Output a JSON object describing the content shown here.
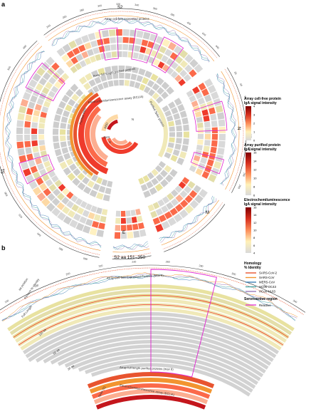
{
  "panels": {
    "a": "a",
    "b": "b"
  },
  "segments_a": [
    {
      "id": "S2",
      "label": "S2"
    },
    {
      "id": "N",
      "label": "N"
    },
    {
      "id": "M",
      "label": "M"
    },
    {
      "id": "E",
      "label": "E"
    },
    {
      "id": "S1",
      "label": "S1"
    }
  ],
  "track_labels_a": {
    "cellfree": "Array cell-free expressed proteins",
    "fulllength": "Array full-length purified proteins",
    "ecl": "Electrochemiluminescence assay (ECLIA)",
    "rbd": "Purified RBD",
    "spike": "Purified Spike protein",
    "inner_n": "N",
    "inner_s": "S",
    "inner_rbd": "RBD",
    "inner_ntd": "NTD"
  },
  "ticks_a_top": [
    "240",
    "260",
    "280",
    "300",
    "320",
    "340",
    "360",
    "380",
    "400",
    "420",
    "440"
  ],
  "ticks_a_left": [
    "680",
    "660",
    "640",
    "620",
    "600",
    "580",
    "560",
    "540",
    "520",
    "500",
    "480"
  ],
  "ticks_a_right": [
    "20",
    "40",
    "60",
    "80",
    "100",
    "120",
    "140",
    "160",
    "180",
    "200"
  ],
  "panel_b": {
    "title": "S2 aa 151–350",
    "cellfree": "Array Cell-free Expressed Proteins (Max 8)",
    "fulllength": "Array full-length purified proteins (max 8)",
    "ecl": "Electrochemiluminescence assay (ECLIA)",
    "aa_position": "aa position",
    "identity": "Percent % Identity",
    "full_length": "Full Length",
    "aa100": "100 aa",
    "aa50": "50 aa",
    "aa30": "30 aa",
    "spike_s": "Spike (S)",
    "ticks": [
      "160",
      "180",
      "200",
      "220",
      "240",
      "260",
      "280",
      "300",
      "320",
      "340"
    ]
  },
  "legend": {
    "cellfree": {
      "title1": "Array cell-free protein",
      "title2": "IgA signal intensity",
      "ticks": [
        "4",
        "3",
        "2",
        "1",
        "0"
      ],
      "colors": [
        "#7f0000",
        "#c4161c",
        "#ef3b2c",
        "#fb6a4a",
        "#fcae91",
        "#fee5d9",
        "#fff5c8",
        "#e8e2a0",
        "#d9d9d9"
      ]
    },
    "purified": {
      "title1": "Array purified protein",
      "title2": "IgA signal intensity",
      "ticks": [
        "16",
        "14",
        "12",
        "10",
        "8",
        "6"
      ],
      "colors": [
        "#7f0000",
        "#c4161c",
        "#ef3b2c",
        "#fb6a4a",
        "#fcae91",
        "#fee5d9",
        "#fff5c8",
        "#e8e2a0",
        "#d9d9d9"
      ]
    },
    "ecl": {
      "title1": "Electrochemiluminescence",
      "title2": "IgA signal intensity",
      "ticks": [
        "16",
        "14",
        "12",
        "10",
        "8",
        "6",
        "4"
      ],
      "colors": [
        "#7f0000",
        "#c4161c",
        "#ef3b2c",
        "#fb6a4a",
        "#fcae91",
        "#fee5d9",
        "#fff5c8",
        "#e8e2a0",
        "#d9d9d9"
      ]
    },
    "homology": {
      "title1": "Homology",
      "title2": "% Identity",
      "items": [
        {
          "label": "SARS-CoV-2",
          "color": "#e8542f"
        },
        {
          "label": "SARS-CoV",
          "color": "#f29430"
        },
        {
          "label": "MERS-CoV",
          "color": "#3f7fb5"
        },
        {
          "label": "HCoV-OC43",
          "color": "#46a6a6"
        },
        {
          "label": "HCoV-NL63",
          "color": "#9a7bb8"
        }
      ]
    },
    "sero": {
      "title": "Seroreactive region",
      "item": "Reactive",
      "color": "#e020d0"
    }
  },
  "chart_data": [
    {
      "type": "heatmap",
      "title": "",
      "series": [
        {
          "name": "SARS-CoV-2"
        },
        {
          "name": "SARS-CoV"
        },
        {
          "name": "MERS-CoV"
        },
        {
          "name": "HCoV-OC43"
        },
        {
          "name": "HCoV-NL63"
        }
      ],
      "segments": [
        "S2",
        "N",
        "M",
        "E",
        "S1"
      ],
      "reactive_region": "Reactive"
    },
    {
      "type": "heatmap",
      "title": "S2 aa 151–350",
      "x_range": [
        151,
        350
      ],
      "x_ticks": [
        160,
        180,
        200,
        220,
        240,
        260,
        280,
        300,
        320,
        340
      ]
    }
  ]
}
